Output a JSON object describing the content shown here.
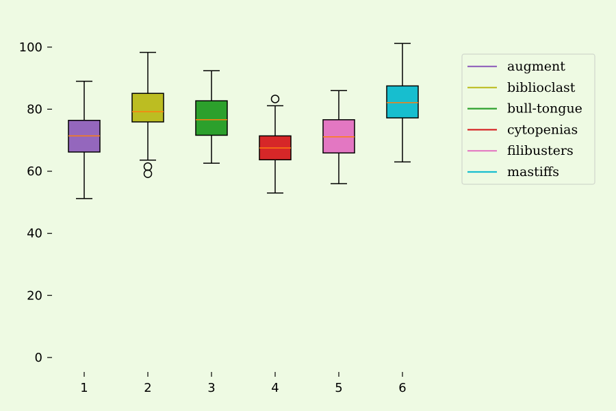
{
  "chart_data": {
    "type": "box",
    "title": "",
    "xlabel": "",
    "ylabel": "",
    "ylim": [
      -4,
      109
    ],
    "yticks": [
      0,
      20,
      40,
      60,
      80,
      100
    ],
    "categories": [
      "1",
      "2",
      "3",
      "4",
      "5",
      "6"
    ],
    "median_color": "#ff7f0e",
    "legend_position": "upper-right",
    "series": [
      {
        "name": "augment",
        "color": "#9467bd",
        "whisker_low": 51.2,
        "q1": 66.2,
        "median": 71.4,
        "q3": 76.4,
        "whisker_high": 89.0,
        "outliers": []
      },
      {
        "name": "biblioclast",
        "color": "#bcbd22",
        "whisker_low": 63.6,
        "q1": 75.9,
        "median": 79.2,
        "q3": 85.1,
        "whisker_high": 98.3,
        "outliers": [
          61.5,
          59.2
        ]
      },
      {
        "name": "bull-tongue",
        "color": "#2ca02c",
        "whisker_low": 62.6,
        "q1": 71.6,
        "median": 76.6,
        "q3": 82.7,
        "whisker_high": 92.4,
        "outliers": []
      },
      {
        "name": "cytopenias",
        "color": "#d62728",
        "whisker_low": 53.0,
        "q1": 63.7,
        "median": 67.5,
        "q3": 71.4,
        "whisker_high": 81.1,
        "outliers": [
          83.3
        ]
      },
      {
        "name": "filibusters",
        "color": "#e377c2",
        "whisker_low": 56.0,
        "q1": 65.9,
        "median": 71.1,
        "q3": 76.6,
        "whisker_high": 86.0,
        "outliers": []
      },
      {
        "name": "mastiffs",
        "color": "#17becf",
        "whisker_low": 63.0,
        "q1": 77.2,
        "median": 82.1,
        "q3": 87.5,
        "whisker_high": 101.2,
        "outliers": []
      }
    ]
  }
}
